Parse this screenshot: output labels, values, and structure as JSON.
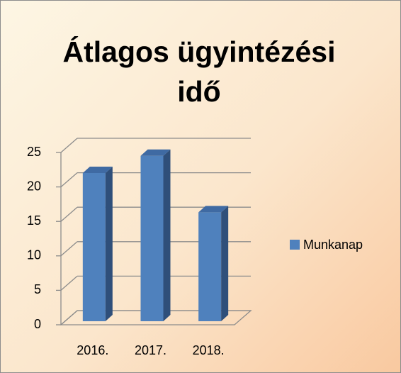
{
  "chart_data": {
    "type": "bar3d",
    "title": "Átlagos ügyintézési idő",
    "categories": [
      "2016.",
      "2017.",
      "2018."
    ],
    "series": [
      {
        "name": "Munkanap",
        "color": "#4f81bd",
        "values": [
          21.5,
          24,
          15.8
        ]
      }
    ],
    "ylim": [
      0,
      25
    ],
    "yticks": [
      0,
      5,
      10,
      15,
      20,
      25
    ],
    "grid": true,
    "legend": "right"
  }
}
